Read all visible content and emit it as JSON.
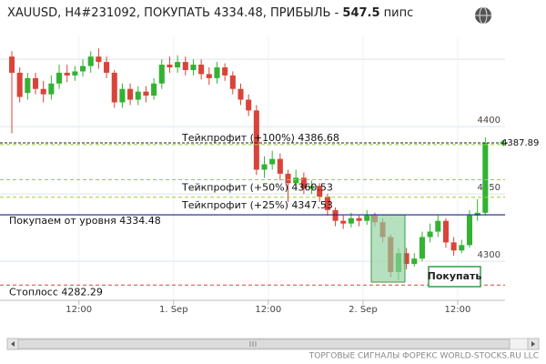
{
  "chart_data": {
    "type": "candlestick",
    "title": {
      "prefix": "XAUUSD, H4#231092, ПОКУПАТЬ 4334.48, ПРИБЫЛЬ - ",
      "profit": "547.5",
      "unit": " пипс"
    },
    "x": [
      0,
      1,
      2,
      3,
      4,
      5,
      6,
      7,
      8,
      9,
      10,
      11,
      12,
      13,
      14,
      15,
      16,
      17,
      18,
      19,
      20,
      21,
      22,
      23,
      24,
      25,
      26,
      27,
      28,
      29,
      30,
      31,
      32,
      33,
      34,
      35,
      36,
      37,
      38,
      39,
      40,
      41,
      42,
      43,
      44,
      45,
      46,
      47,
      48,
      49,
      50,
      51,
      52,
      53,
      54,
      55,
      56,
      57,
      58,
      59,
      60
    ],
    "open": [
      4452,
      4440,
      4425,
      4436,
      4428,
      4424,
      4432,
      4440,
      4438,
      4441,
      4445,
      4452,
      4448,
      4440,
      4418,
      4428,
      4420,
      4426,
      4423,
      4432,
      4446,
      4444,
      4448,
      4442,
      4446,
      4439,
      4436,
      4444,
      4438,
      4428,
      4420,
      4412,
      4368,
      4372,
      4376,
      4365,
      4358,
      4362,
      4354,
      4356,
      4348,
      4338,
      4330,
      4328,
      4332,
      4330,
      4334,
      4329,
      4318,
      4292,
      4306,
      4298,
      4302,
      4318,
      4322,
      4330,
      4314,
      4308,
      4312,
      4334,
      4336
    ],
    "high": [
      4456,
      4444,
      4440,
      4440,
      4434,
      4438,
      4446,
      4446,
      4445,
      4450,
      4456,
      4458,
      4452,
      4442,
      4432,
      4432,
      4430,
      4430,
      4436,
      4450,
      4452,
      4453,
      4452,
      4450,
      4450,
      4444,
      4448,
      4447,
      4441,
      4432,
      4424,
      4416,
      4378,
      4382,
      4380,
      4368,
      4368,
      4366,
      4360,
      4358,
      4350,
      4340,
      4334,
      4336,
      4334,
      4338,
      4336,
      4332,
      4320,
      4310,
      4310,
      4306,
      4322,
      4328,
      4334,
      4332,
      4318,
      4316,
      4338,
      4346,
      4392
    ],
    "low": [
      4395,
      4418,
      4420,
      4424,
      4418,
      4420,
      4428,
      4433,
      4434,
      4437,
      4440,
      4443,
      4436,
      4414,
      4414,
      4416,
      4416,
      4418,
      4420,
      4428,
      4440,
      4440,
      4438,
      4438,
      4435,
      4431,
      4432,
      4434,
      4424,
      4416,
      4408,
      4364,
      4362,
      4368,
      4360,
      4344,
      4354,
      4350,
      4350,
      4344,
      4334,
      4326,
      4324,
      4325,
      4326,
      4327,
      4326,
      4314,
      4288,
      4286,
      4294,
      4296,
      4300,
      4314,
      4318,
      4310,
      4304,
      4306,
      4310,
      4330,
      4334
    ],
    "close": [
      4440,
      4422,
      4436,
      4428,
      4424,
      4432,
      4440,
      4438,
      4441,
      4445,
      4452,
      4448,
      4440,
      4418,
      4428,
      4420,
      4426,
      4423,
      4432,
      4446,
      4444,
      4448,
      4442,
      4446,
      4439,
      4436,
      4444,
      4438,
      4428,
      4420,
      4412,
      4368,
      4372,
      4376,
      4365,
      4358,
      4362,
      4354,
      4356,
      4348,
      4338,
      4330,
      4328,
      4332,
      4330,
      4334,
      4329,
      4318,
      4292,
      4306,
      4298,
      4302,
      4318,
      4322,
      4330,
      4314,
      4308,
      4312,
      4334,
      4336,
      4388
    ],
    "up_color": "#33b233",
    "down_color": "#d9443a",
    "xlim": [
      -1.5,
      62.5
    ],
    "xticks": [
      {
        "value": 8.5,
        "label": "12:00"
      },
      {
        "value": 20.5,
        "label": "1. Sep"
      },
      {
        "value": 32.5,
        "label": "12:00"
      },
      {
        "value": 44.5,
        "label": "2. Sep"
      },
      {
        "value": 56.5,
        "label": "12:00"
      }
    ],
    "ylim": [
      4271,
      4467
    ],
    "yticks": [
      {
        "value": 4450,
        "label": ""
      },
      4400,
      4350,
      4300
    ],
    "grid": true,
    "levels": [
      {
        "label": "Тейкпрофит (+100%) 4386.68",
        "value": 4386.68,
        "color": "#9acd32",
        "style": "dashed"
      },
      {
        "label": "Тейкпрофит (+50%) 4360.53",
        "value": 4360.53,
        "color": "#9acd32",
        "style": "dashed"
      },
      {
        "label": "Тейкпрофит (+25%) 4347.53",
        "value": 4347.53,
        "color": "#9acd32",
        "style": "dashed"
      },
      {
        "label": "Покупаем от уровня 4334.48",
        "value": 4334.48,
        "color": "#1a237e",
        "style": "solid"
      },
      {
        "label": "Стоплосс 4282.29",
        "value": 4282.29,
        "color": "#d9443a",
        "style": "dashed"
      }
    ],
    "last_price": 4387.89,
    "button": "Покупать",
    "footer": "ТОРГОВЫЕ СИГНАЛЫ ФОРЕКС WORLD-STOCKS.RU LLC"
  }
}
